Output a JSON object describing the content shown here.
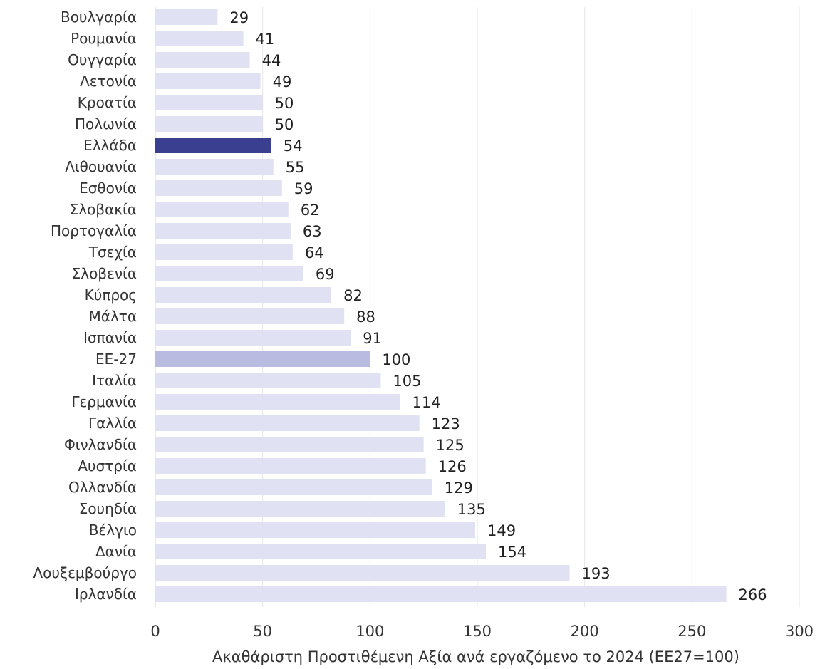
{
  "chart_data": {
    "type": "bar",
    "orientation": "horizontal",
    "title": "",
    "xlabel": "Ακαθάριστη Προστιθέμενη Αξία ανά εργαζόμενο το 2024 (ΕΕ27=100)",
    "ylabel": "",
    "xlim": [
      0,
      300
    ],
    "xticks": [
      0,
      50,
      100,
      150,
      200,
      250,
      300
    ],
    "grid": "vertical",
    "legend": "none",
    "categories": [
      "Βουλγαρία",
      "Ρουμανία",
      "Ουγγαρία",
      "Λετονία",
      "Κροατία",
      "Πολωνία",
      "Ελλάδα",
      "Λιθουανία",
      "Εσθονία",
      "Σλοβακία",
      "Πορτογαλία",
      "Τσεχία",
      "Σλοβενία",
      "Κύπρος",
      "Μάλτα",
      "Ισπανία",
      "ΕΕ-27",
      "Ιταλία",
      "Γερμανία",
      "Γαλλία",
      "Φινλανδία",
      "Αυστρία",
      "Ολλανδία",
      "Σουηδία",
      "Βέλγιο",
      "Δανία",
      "Λουξεμβούργο",
      "Ιρλανδία"
    ],
    "values": [
      29,
      41,
      44,
      49,
      50,
      50,
      54,
      55,
      59,
      62,
      63,
      64,
      69,
      82,
      88,
      91,
      100,
      105,
      114,
      123,
      125,
      126,
      129,
      135,
      149,
      154,
      193,
      266
    ],
    "colors": {
      "default": "#e0e1f2",
      "highlight_greece": "#3b3f8f",
      "highlight_eu27": "#b9bbe0"
    },
    "highlights": {
      "Ελλάδα": "highlight_greece",
      "ΕΕ-27": "highlight_eu27"
    }
  }
}
